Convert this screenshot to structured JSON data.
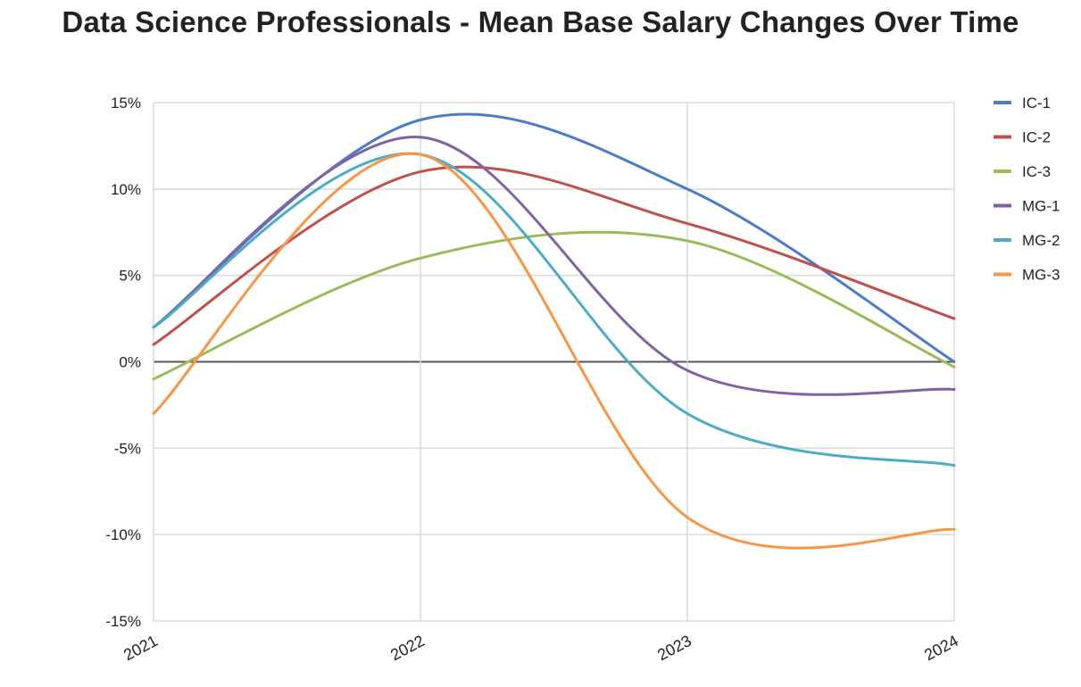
{
  "chart_data": {
    "type": "line",
    "title": "Data Science Professionals - Mean Base Salary Changes Over Time",
    "x": [
      "2021",
      "2022",
      "2023",
      "2024"
    ],
    "xlabel": "",
    "ylabel": "",
    "ylim": [
      -15,
      15
    ],
    "yticks": [
      15,
      10,
      5,
      0,
      -5,
      -10,
      -15
    ],
    "ytick_labels": [
      "15%",
      "10%",
      "5%",
      "0%",
      "-5%",
      "-10%",
      "-15%"
    ],
    "grid": true,
    "smooth": true,
    "legend_position": "right",
    "series": [
      {
        "name": "IC-1",
        "color": "#4a7cc7",
        "values": [
          2,
          14,
          10,
          0
        ]
      },
      {
        "name": "IC-2",
        "color": "#c0504d",
        "values": [
          1,
          11,
          8,
          2.5
        ]
      },
      {
        "name": "IC-3",
        "color": "#9bbb59",
        "values": [
          -1,
          6,
          7,
          -0.3
        ]
      },
      {
        "name": "MG-1",
        "color": "#8064a2",
        "values": [
          2,
          13,
          -0.5,
          -1.6
        ]
      },
      {
        "name": "MG-2",
        "color": "#4bacc6",
        "values": [
          2,
          12,
          -3,
          -6
        ]
      },
      {
        "name": "MG-3",
        "color": "#f79646",
        "values": [
          -3,
          12,
          -9,
          -9.7
        ]
      }
    ]
  }
}
